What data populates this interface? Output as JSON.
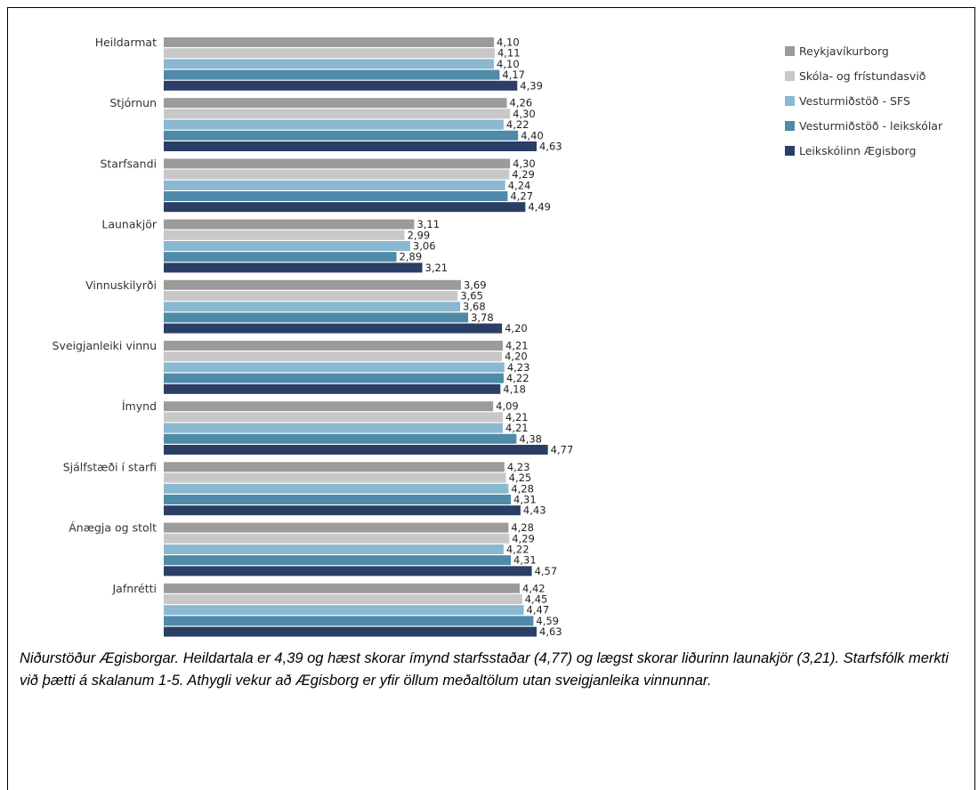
{
  "chart_data": {
    "type": "bar",
    "orientation": "horizontal",
    "categories": [
      "Heildarmat",
      "Stjórnun",
      "Starfsandi",
      "Launakjör",
      "Vinnuskilyrði",
      "Sveigjanleiki vinnu",
      "Ímynd",
      "Sjálfstæði í starfi",
      "Ánægja og stolt",
      "Jafnrétti"
    ],
    "series": [
      {
        "name": "Reykjavíkurborg",
        "color": "#9b9b9b",
        "values": [
          4.1,
          4.26,
          4.3,
          3.11,
          3.69,
          4.21,
          4.09,
          4.23,
          4.28,
          4.42
        ],
        "labels": [
          "4,10",
          "4,26",
          "4,30",
          "3,11",
          "3,69",
          "4,21",
          "4,09",
          "4,23",
          "4,28",
          "4,42"
        ]
      },
      {
        "name": "Skóla- og frístundasvið",
        "color": "#c8c8c8",
        "values": [
          4.11,
          4.3,
          4.29,
          2.99,
          3.65,
          4.2,
          4.21,
          4.25,
          4.29,
          4.45
        ],
        "labels": [
          "4,11",
          "4,30",
          "4,29",
          "2,99",
          "3,65",
          "4,20",
          "4,21",
          "4,25",
          "4,29",
          "4,45"
        ]
      },
      {
        "name": "Vesturmiðstöð - SFS",
        "color": "#8ab8d1",
        "values": [
          4.1,
          4.22,
          4.24,
          3.06,
          3.68,
          4.23,
          4.21,
          4.28,
          4.22,
          4.47
        ],
        "labels": [
          "4,10",
          "4,22",
          "4,24",
          "3,06",
          "3,68",
          "4,23",
          "4,21",
          "4,28",
          "4,22",
          "4,47"
        ]
      },
      {
        "name": "Vesturmiðstöð - leikskólar",
        "color": "#4f8aa8",
        "values": [
          4.17,
          4.4,
          4.27,
          2.89,
          3.78,
          4.22,
          4.38,
          4.31,
          4.31,
          4.59
        ],
        "labels": [
          "4,17",
          "4,40",
          "4,27",
          "2,89",
          "3,78",
          "4,22",
          "4,38",
          "4,31",
          "4,31",
          "4,59"
        ]
      },
      {
        "name": "Leikskólinn Ægisborg",
        "color": "#2b3e66",
        "values": [
          4.39,
          4.63,
          4.49,
          3.21,
          4.2,
          4.18,
          4.77,
          4.43,
          4.57,
          4.63
        ],
        "labels": [
          "4,39",
          "4,63",
          "4,49",
          "3,21",
          "4,20",
          "4,18",
          "4,77",
          "4,43",
          "4,57",
          "4,63"
        ]
      }
    ],
    "xlim": [
      0,
      5.5
    ],
    "grid": false,
    "legend_position": "top-right"
  },
  "caption": "Niðurstöður Ægisborgar. Heildartala er 4,39 og hæst skorar ímynd starfsstaðar (4,77) og lægst skorar liðurinn launakjör (3,21). Starfsfólk merkti við þætti á skalanum 1-5. Athygli vekur að Ægisborg er yfir öllum meðaltölum utan sveigjanleika vinnunnar."
}
